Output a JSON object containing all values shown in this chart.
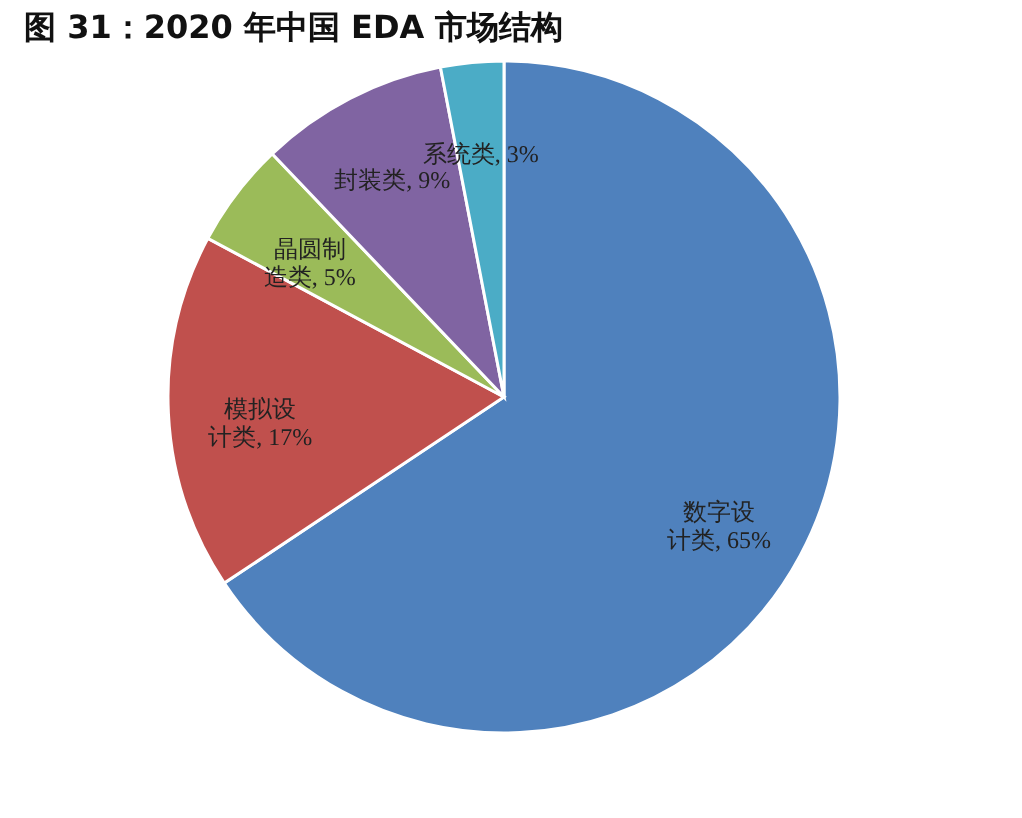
{
  "chart_data": {
    "type": "pie",
    "title": "图 31：2020 年中国 EDA 市场结构",
    "categories": [
      "数字设计类",
      "模拟设计类",
      "晶圆制造类",
      "封装类",
      "系统类"
    ],
    "values": [
      65,
      17,
      5,
      9,
      3
    ],
    "colors": [
      "#4f81bd",
      "#c0504d",
      "#9bbb59",
      "#8064a2",
      "#4bacc6"
    ],
    "value_labels": [
      "65%",
      "17%",
      "5%",
      "9%",
      "3%"
    ],
    "legend": false
  }
}
